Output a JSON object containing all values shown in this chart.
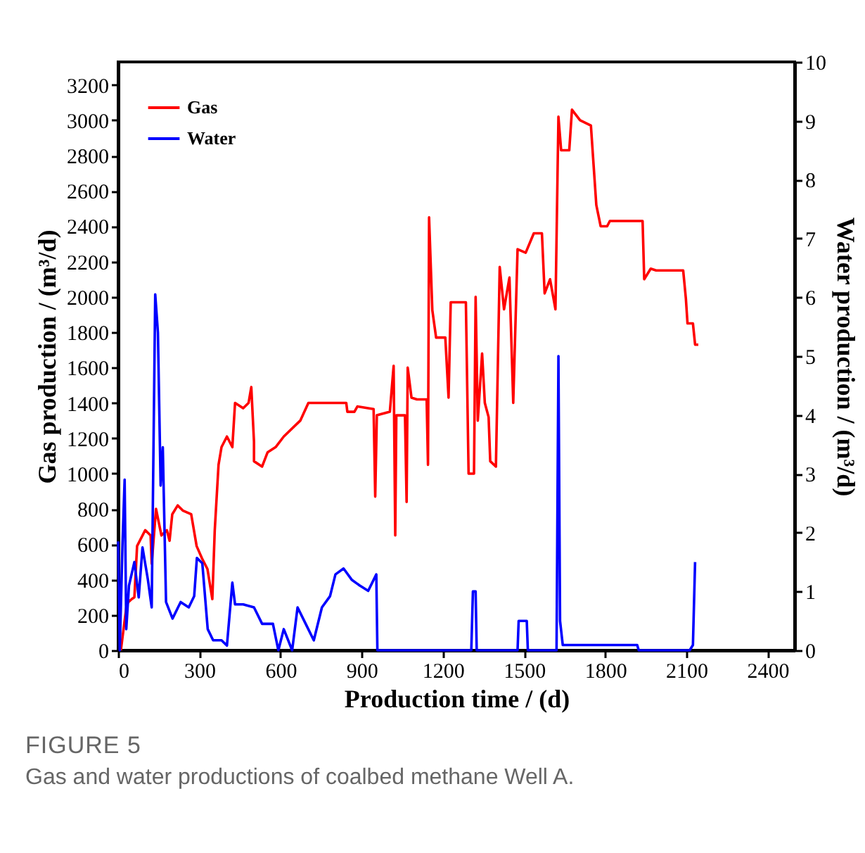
{
  "chart_data": {
    "type": "line",
    "xlabel": "Production time / (d)",
    "ylabel": "Gas production / (m³/d)",
    "y2label": "Water production / (m³/d)",
    "xlim": [
      0,
      2500
    ],
    "xticks": [
      0,
      300,
      600,
      900,
      1200,
      1500,
      1800,
      2100,
      2400
    ],
    "ylim": [
      0,
      3330
    ],
    "yticks": [
      0,
      200,
      400,
      600,
      800,
      1000,
      1200,
      1400,
      1600,
      1800,
      2000,
      2200,
      2400,
      2600,
      2800,
      3000,
      3200
    ],
    "y2lim": [
      0,
      10
    ],
    "y2ticks": [
      0,
      1,
      2,
      3,
      4,
      5,
      6,
      7,
      8,
      9,
      10
    ],
    "grid": false,
    "legend": "top left",
    "annotations": [
      "FIGURE 5",
      "Gas and water productions of coalbed methane Well A."
    ],
    "series": [
      {
        "name": "Gas",
        "color": "#ff0000",
        "x": [
          10,
          30,
          36,
          50,
          60,
          70,
          90,
          100,
          120,
          124,
          140,
          160,
          180,
          190,
          200,
          220,
          240,
          270,
          290,
          310,
          330,
          348,
          357,
          371,
          382,
          402,
          422,
          432,
          462,
          482,
          492,
          502,
          502,
          532,
          552,
          582,
          612,
          673,
          703,
          843,
          847,
          873,
          884,
          944,
          950,
          956,
          1004,
          1018,
          1024,
          1028,
          1060,
          1066,
          1070,
          1084,
          1104,
          1140,
          1145,
          1149,
          1161,
          1175,
          1209,
          1221,
          1229,
          1285,
          1295,
          1315,
          1321,
          1329,
          1345,
          1355,
          1369,
          1375,
          1396,
          1410,
          1426,
          1446,
          1460,
          1476,
          1506,
          1536,
          1566,
          1576,
          1596,
          1616,
          1627,
          1637,
          1667,
          1677,
          1707,
          1747,
          1767,
          1783,
          1807,
          1817,
          1938,
          1944,
          1968,
          1988,
          2088,
          2098,
          2104,
          2124,
          2132,
          2144
        ],
        "values": [
          0,
          240,
          270,
          290,
          300,
          590,
          650,
          680,
          650,
          490,
          800,
          650,
          680,
          620,
          770,
          820,
          790,
          770,
          590,
          520,
          460,
          290,
          680,
          1050,
          1150,
          1210,
          1150,
          1400,
          1370,
          1400,
          1490,
          1180,
          1070,
          1040,
          1120,
          1150,
          1210,
          1300,
          1400,
          1400,
          1350,
          1350,
          1380,
          1365,
          870,
          1330,
          1350,
          1610,
          650,
          1330,
          1330,
          840,
          1600,
          1430,
          1420,
          1420,
          1050,
          2450,
          1925,
          1770,
          1770,
          1430,
          1970,
          1970,
          1000,
          1000,
          2000,
          1300,
          1680,
          1400,
          1320,
          1070,
          1040,
          2170,
          1930,
          2110,
          1400,
          2270,
          2250,
          2360,
          2360,
          2020,
          2100,
          1930,
          3020,
          2830,
          2830,
          3060,
          3000,
          2970,
          2520,
          2400,
          2400,
          2430,
          2430,
          2100,
          2160,
          2150,
          2150,
          1990,
          1850,
          1850,
          1730,
          1730
        ]
      },
      {
        "name": "Water",
        "color": "#0000ff",
        "axis": "y2",
        "x": [
          0,
          6,
          16,
          24,
          30,
          40,
          60,
          76,
          90,
          110,
          124,
          137,
          147,
          157,
          165,
          177,
          201,
          231,
          261,
          281,
          291,
          311,
          331,
          351,
          382,
          402,
          422,
          432,
          462,
          502,
          532,
          572,
          592,
          612,
          643,
          663,
          693,
          723,
          753,
          783,
          803,
          833,
          863,
          893,
          924,
          954,
          958,
          1305,
          1311,
          1321,
          1325,
          1476,
          1480,
          1510,
          1514,
          1620,
          1627,
          1633,
          1643,
          1918,
          1924,
          2112,
          2124,
          2132
        ],
        "values": [
          1.85,
          0,
          1.8,
          2.9,
          0.36,
          1.1,
          1.5,
          0.9,
          1.75,
          1.2,
          0.73,
          6.05,
          5.4,
          2.8,
          3.45,
          0.82,
          0.54,
          0.82,
          0.73,
          0.92,
          1.57,
          1.48,
          0.36,
          0.17,
          0.17,
          0.08,
          1.15,
          0.78,
          0.78,
          0.73,
          0.45,
          0.45,
          0,
          0.36,
          0,
          0.73,
          0.45,
          0.17,
          0.73,
          0.92,
          1.29,
          1.39,
          1.2,
          1.1,
          1.01,
          1.29,
          0,
          0,
          1,
          1,
          0,
          0,
          0.5,
          0.5,
          0,
          0,
          5,
          0.5,
          0.09,
          0.09,
          0,
          0,
          0.09,
          1.5
        ]
      }
    ]
  }
}
